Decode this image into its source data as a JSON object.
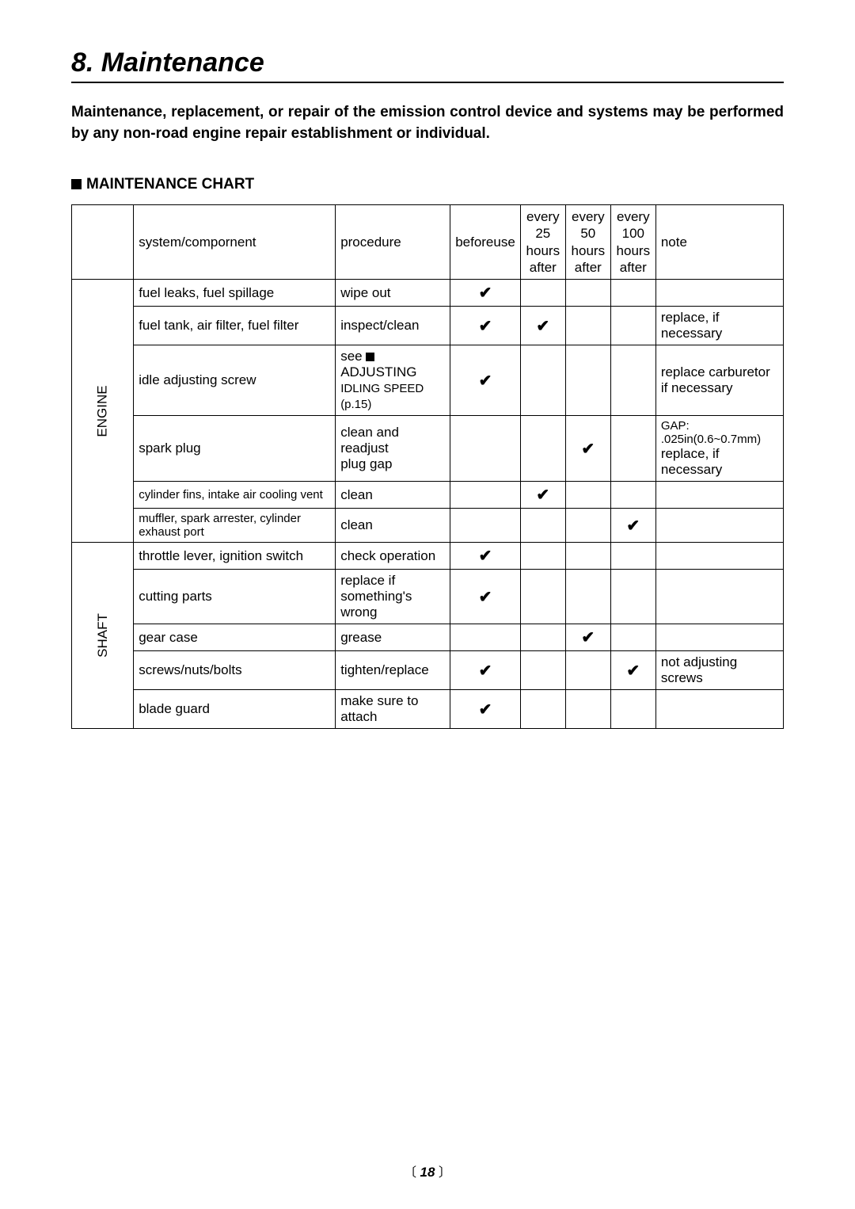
{
  "title": "8. Maintenance",
  "intro": "Maintenance, replacement, or repair of the emission control device and systems may be performed by any non-road engine repair establishment or individual.",
  "chart_label": "MAINTENANCE CHART",
  "headers": {
    "system": "system/compornent",
    "procedure": "procedure",
    "before": "before use",
    "h25": "every 25 hours after",
    "h50": "every 50 hours after",
    "h100": "every 100 hours after",
    "note": "note"
  },
  "groups": {
    "engine": "ENGINE",
    "shaft": "SHAFT"
  },
  "rows": {
    "r1": {
      "sys": "fuel leaks, fuel spillage",
      "proc": "wipe out",
      "before": "✔",
      "h25": "",
      "h50": "",
      "h100": "",
      "note": ""
    },
    "r2": {
      "sys": "fuel tank, air filter, fuel filter",
      "proc": "inspect/clean",
      "before": "✔",
      "h25": "✔",
      "h50": "",
      "h100": "",
      "note": "replace, if necessary"
    },
    "r3": {
      "sys": "idle adjusting screw",
      "proc1": "see ",
      "proc1b": "ADJUSTING",
      "proc2": "IDLING SPEED (p.15)",
      "before": "✔",
      "h25": "",
      "h50": "",
      "h100": "",
      "note1": "replace carburetor",
      "note2": "if necessary"
    },
    "r4": {
      "sys": "spark plug",
      "proc1": "clean and readjust",
      "proc2": "plug gap",
      "before": "",
      "h25": "",
      "h50": "✔",
      "h100": "",
      "note1": "GAP: .025in(0.6~0.7mm)",
      "note2": "replace, if necessary"
    },
    "r5": {
      "sys": "cylinder fins, intake air cooling vent",
      "proc": "clean",
      "before": "",
      "h25": "✔",
      "h50": "",
      "h100": "",
      "note": ""
    },
    "r6": {
      "sys": "muffler, spark arrester, cylinder exhaust port",
      "proc": "clean",
      "before": "",
      "h25": "",
      "h50": "",
      "h100": "✔",
      "note": ""
    },
    "r7": {
      "sys": "throttle lever, ignition switch",
      "proc": "check operation",
      "before": "✔",
      "h25": "",
      "h50": "",
      "h100": "",
      "note": ""
    },
    "r8": {
      "sys": "cutting parts",
      "proc1": "replace if",
      "proc2": "something's wrong",
      "before": "✔",
      "h25": "",
      "h50": "",
      "h100": "",
      "note": ""
    },
    "r9": {
      "sys": "gear case",
      "proc": "grease",
      "before": "",
      "h25": "",
      "h50": "✔",
      "h100": "",
      "note": ""
    },
    "r10": {
      "sys": "screws/nuts/bolts",
      "proc": "tighten/replace",
      "before": "✔",
      "h25": "",
      "h50": "",
      "h100": "✔",
      "note": "not adjusting screws"
    },
    "r11": {
      "sys": "blade guard",
      "proc": "make sure to attach",
      "before": "✔",
      "h25": "",
      "h50": "",
      "h100": "",
      "note": ""
    }
  },
  "footer": {
    "lb": "〔",
    "num": "18",
    "rb": "〕"
  }
}
